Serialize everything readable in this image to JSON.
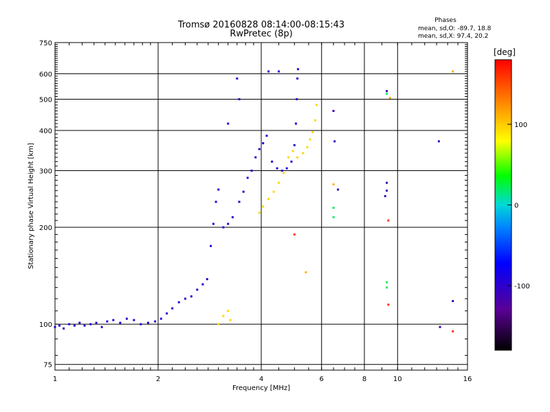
{
  "chart_data": {
    "type": "scatter",
    "title": "Tromsø 20160828 08:14:00-08:15:43",
    "subtitle": "RwPretec (8p)",
    "stats": {
      "heading": "Phases",
      "line_o": "mean, sd,O: -89.7, 18.8",
      "line_x": "mean, sd,X:  97.4, 20.2"
    },
    "xlabel": "Frequency [MHz]",
    "ylabel": "Stationary phase Virtual Height [km]",
    "x_scale": "log2",
    "y_scale": "log",
    "xlim": [
      1,
      16
    ],
    "ylim": [
      72,
      750
    ],
    "x_ticks": [
      1,
      2,
      4,
      6,
      8,
      10,
      16
    ],
    "x_tick_labels": [
      "1",
      "2",
      "4",
      "6",
      "8",
      "10",
      "16"
    ],
    "y_ticks": [
      75,
      100,
      200,
      300,
      400,
      500,
      600,
      750
    ],
    "y_tick_labels": [
      "75",
      "100",
      "200",
      "300",
      "400",
      "500",
      "600",
      "750"
    ],
    "grid": true,
    "colorbar": {
      "label": "[deg]",
      "range": [
        -180,
        180
      ],
      "ticks": [
        100,
        0,
        -100
      ],
      "tick_labels": [
        "100",
        "0",
        "-100"
      ]
    },
    "series": [
      {
        "color_phase": -95,
        "points": [
          [
            1.0,
            98
          ],
          [
            1.03,
            99
          ],
          [
            1.06,
            97
          ],
          [
            1.1,
            100
          ],
          [
            1.14,
            99
          ],
          [
            1.18,
            101
          ],
          [
            1.22,
            99
          ],
          [
            1.27,
            100
          ],
          [
            1.32,
            101
          ],
          [
            1.37,
            98
          ],
          [
            1.42,
            102
          ],
          [
            1.48,
            103
          ],
          [
            1.55,
            101
          ],
          [
            1.62,
            104
          ],
          [
            1.7,
            103
          ],
          [
            1.78,
            100
          ],
          [
            1.87,
            101
          ],
          [
            1.96,
            102
          ],
          [
            2.04,
            104
          ],
          [
            2.12,
            108
          ],
          [
            2.2,
            112
          ],
          [
            2.3,
            117
          ],
          [
            2.4,
            120
          ],
          [
            2.5,
            122
          ],
          [
            2.6,
            128
          ],
          [
            2.7,
            133
          ],
          [
            2.78,
            138
          ],
          [
            2.85,
            175
          ],
          [
            2.9,
            205
          ],
          [
            2.95,
            240
          ],
          [
            3.0,
            262
          ],
          [
            3.1,
            200
          ],
          [
            3.2,
            205
          ],
          [
            3.3,
            215
          ],
          [
            3.45,
            240
          ],
          [
            3.55,
            258
          ],
          [
            3.65,
            285
          ],
          [
            3.75,
            300
          ],
          [
            3.85,
            330
          ],
          [
            3.95,
            350
          ],
          [
            4.05,
            365
          ],
          [
            4.15,
            385
          ],
          [
            4.3,
            320
          ],
          [
            4.45,
            305
          ],
          [
            4.6,
            300
          ],
          [
            4.75,
            305
          ],
          [
            4.9,
            320
          ],
          [
            5.0,
            360
          ],
          [
            5.05,
            420
          ],
          [
            5.08,
            500
          ],
          [
            5.1,
            580
          ],
          [
            5.12,
            620
          ],
          [
            4.5,
            610
          ],
          [
            4.2,
            610
          ],
          [
            3.2,
            420
          ],
          [
            3.4,
            580
          ],
          [
            3.45,
            500
          ]
        ]
      },
      {
        "color_phase": 95,
        "points": [
          [
            3.0,
            100
          ],
          [
            3.1,
            106
          ],
          [
            3.2,
            110
          ],
          [
            3.25,
            103
          ],
          [
            3.95,
            222
          ],
          [
            4.05,
            232
          ],
          [
            4.2,
            245
          ],
          [
            4.35,
            258
          ],
          [
            4.5,
            275
          ],
          [
            4.65,
            295
          ],
          [
            4.8,
            330
          ],
          [
            4.95,
            345
          ],
          [
            5.1,
            330
          ],
          [
            5.3,
            340
          ],
          [
            5.45,
            355
          ],
          [
            5.55,
            375
          ],
          [
            5.65,
            395
          ],
          [
            5.75,
            430
          ],
          [
            5.8,
            480
          ]
        ]
      },
      {
        "color_phase": 20,
        "points": [
          [
            6.5,
            230
          ],
          [
            6.5,
            215
          ],
          [
            9.3,
            520
          ],
          [
            9.3,
            135
          ],
          [
            9.3,
            130
          ]
        ]
      },
      {
        "color_phase": -110,
        "points": [
          [
            6.5,
            460
          ],
          [
            6.55,
            370
          ],
          [
            6.7,
            262
          ],
          [
            9.2,
            250
          ],
          [
            9.3,
            530
          ],
          [
            9.3,
            275
          ],
          [
            9.3,
            260
          ],
          [
            13.2,
            370
          ],
          [
            14.5,
            118
          ],
          [
            13.3,
            98
          ]
        ]
      },
      {
        "color_phase": 160,
        "points": [
          [
            5.0,
            190
          ],
          [
            9.4,
            210
          ],
          [
            9.4,
            115
          ],
          [
            14.5,
            95
          ]
        ]
      },
      {
        "color_phase": 110,
        "points": [
          [
            5.4,
            145
          ],
          [
            6.5,
            272
          ],
          [
            9.5,
            505
          ],
          [
            14.5,
            610
          ]
        ]
      }
    ]
  }
}
